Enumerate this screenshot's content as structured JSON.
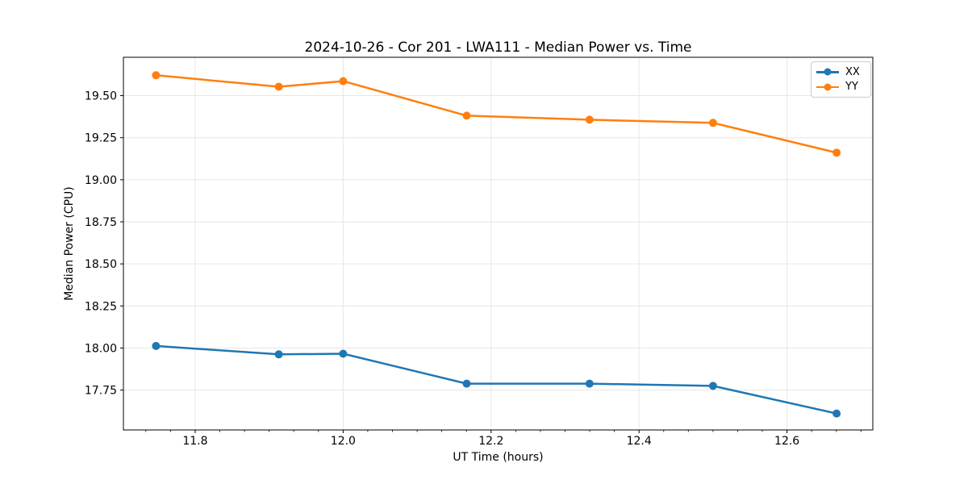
{
  "chart_data": {
    "type": "line",
    "title": "2024-10-26 - Cor 201 - LWA111 - Median Power vs. Time",
    "xlabel": "UT Time (hours)",
    "ylabel": "Median Power (CPU)",
    "x": [
      11.747,
      11.913,
      12.0,
      12.167,
      12.333,
      12.5,
      12.667
    ],
    "series": [
      {
        "name": "XX",
        "color": "#1f77b4",
        "values": [
          18.012,
          17.962,
          17.966,
          17.788,
          17.788,
          17.775,
          17.611
        ]
      },
      {
        "name": "YY",
        "color": "#ff7f0e",
        "values": [
          19.621,
          19.553,
          19.586,
          19.381,
          19.357,
          19.338,
          19.161
        ]
      }
    ],
    "xlim": [
      11.703,
      12.716
    ],
    "ylim": [
      17.513,
      19.728
    ],
    "xticks": [
      11.8,
      12.0,
      12.2,
      12.4,
      12.6
    ],
    "yticks": [
      17.75,
      18.0,
      18.25,
      18.5,
      18.75,
      19.0,
      19.25,
      19.5
    ],
    "x_minor_divisor": 30,
    "x_minor_major_every": 6,
    "grid": true,
    "legend_position": "upper right",
    "legend_labels": [
      "XX",
      "YY"
    ]
  }
}
